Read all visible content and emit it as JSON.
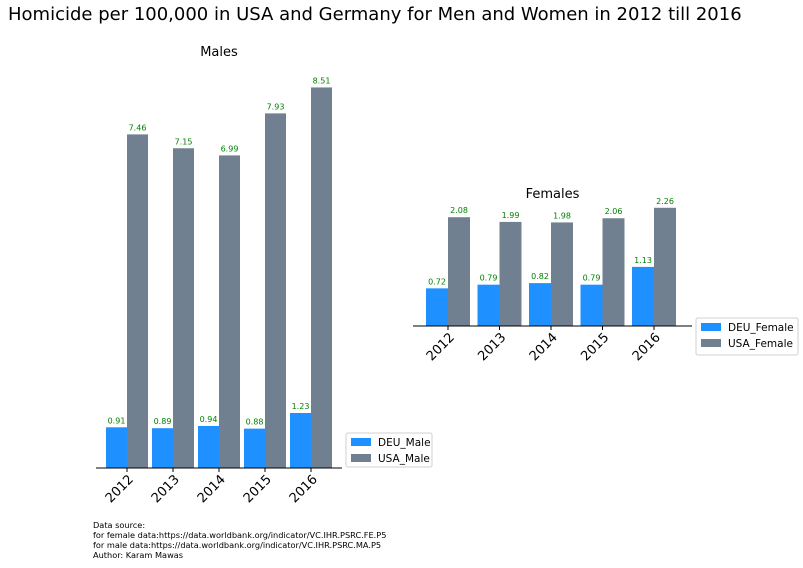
{
  "suptitle": "Homicide per 100,000 in USA and Germany for Men and Women in 2012 till 2016",
  "source": {
    "heading": "Data source:",
    "female": "for female data:https://data.worldbank.org/indicator/VC.IHR.PSRC.FE.P5",
    "male": "for male data:https://data.worldbank.org/indicator/VC.IHR.PSRC.MA.P5",
    "author": "Author: Karam Mawas"
  },
  "colors": {
    "deu": "#1e90ff",
    "usa": "#708090",
    "label": "#008000"
  },
  "chart_data": [
    {
      "type": "bar",
      "title": "Males",
      "categories": [
        "2012",
        "2013",
        "2014",
        "2015",
        "2016"
      ],
      "series": [
        {
          "name": "DEU_Male",
          "values": [
            0.91,
            0.89,
            0.94,
            0.88,
            1.23
          ]
        },
        {
          "name": "USA_Male",
          "values": [
            7.46,
            7.15,
            6.99,
            7.93,
            8.51
          ]
        }
      ],
      "value_labels": [
        [
          "0.91",
          "0.89",
          "0.94",
          "0.88",
          "1.23"
        ],
        [
          "7.46",
          "7.15",
          "6.99",
          "7.93",
          "8.51"
        ]
      ],
      "ylim": [
        0,
        8.9
      ],
      "legend": "lower right outside",
      "grid": false
    },
    {
      "type": "bar",
      "title": "Females",
      "categories": [
        "2012",
        "2013",
        "2014",
        "2015",
        "2016"
      ],
      "series": [
        {
          "name": "DEU_Female",
          "values": [
            0.72,
            0.79,
            0.82,
            0.79,
            1.13
          ]
        },
        {
          "name": "USA_Female",
          "values": [
            2.08,
            1.99,
            1.98,
            2.06,
            2.26
          ]
        }
      ],
      "value_labels": [
        [
          "0.72",
          "0.79",
          "0.82",
          "0.79",
          "1.13"
        ],
        [
          "2.08",
          "1.99",
          "1.98",
          "2.06",
          "2.26"
        ]
      ],
      "ylim": [
        0,
        2.6
      ],
      "legend": "lower right outside",
      "grid": false
    }
  ]
}
